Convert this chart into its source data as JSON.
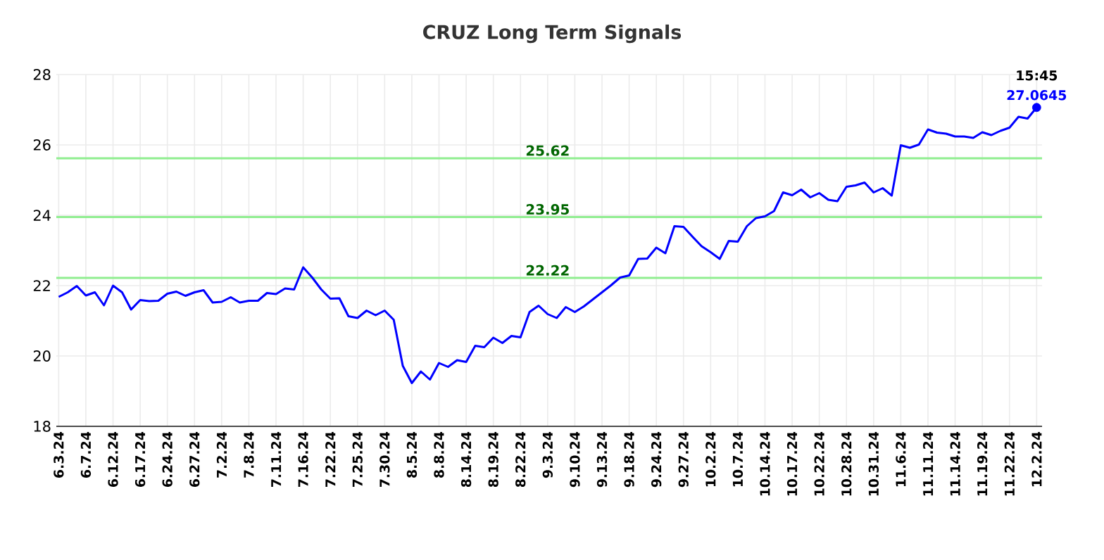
{
  "chart_data": {
    "type": "line",
    "title": "CRUZ Long Term Signals",
    "categories": [
      "6.3.24",
      null,
      null,
      "6.7.24",
      null,
      null,
      "6.12.24",
      null,
      null,
      "6.17.24",
      null,
      null,
      "6.24.24",
      null,
      null,
      "6.27.24",
      null,
      null,
      "7.2.24",
      null,
      null,
      "7.8.24",
      null,
      null,
      "7.11.24",
      null,
      null,
      "7.16.24",
      null,
      null,
      "7.22.24",
      null,
      null,
      "7.25.24",
      null,
      null,
      "7.30.24",
      null,
      null,
      "8.5.24",
      null,
      null,
      "8.8.24",
      null,
      null,
      "8.14.24",
      null,
      null,
      "8.19.24",
      null,
      null,
      "8.22.24",
      null,
      null,
      "9.3.24",
      null,
      null,
      "9.10.24",
      null,
      null,
      "9.13.24",
      null,
      null,
      "9.18.24",
      null,
      null,
      "9.24.24",
      null,
      null,
      "9.27.24",
      null,
      null,
      "10.2.24",
      null,
      null,
      "10.7.24",
      null,
      null,
      "10.14.24",
      null,
      null,
      "10.17.24",
      null,
      null,
      "10.22.24",
      null,
      null,
      "10.28.24",
      null,
      null,
      "10.31.24",
      null,
      null,
      "11.6.24",
      null,
      null,
      "11.11.24",
      null,
      null,
      "11.14.24",
      null,
      null,
      "11.19.24",
      null,
      null,
      "11.22.24",
      null,
      null,
      "12.2.24"
    ],
    "series": [
      {
        "color": "#0000ff",
        "values": [
          21.68,
          21.81,
          21.99,
          21.72,
          21.81,
          21.44,
          22.0,
          21.81,
          21.32,
          21.59,
          21.56,
          21.57,
          21.77,
          21.83,
          21.71,
          21.81,
          21.87,
          21.52,
          21.54,
          21.67,
          21.52,
          21.57,
          21.57,
          21.79,
          21.76,
          21.92,
          21.89,
          22.52,
          22.23,
          21.89,
          21.63,
          21.64,
          21.13,
          21.08,
          21.29,
          21.16,
          21.29,
          21.03,
          19.72,
          19.23,
          19.56,
          19.33,
          19.8,
          19.69,
          19.88,
          19.83,
          20.29,
          20.25,
          20.52,
          20.37,
          20.57,
          20.53,
          21.25,
          21.43,
          21.19,
          21.08,
          21.39,
          21.25,
          21.41,
          21.61,
          21.81,
          22.01,
          22.23,
          22.29,
          22.76,
          22.77,
          23.08,
          22.92,
          23.69,
          23.67,
          23.39,
          23.12,
          22.95,
          22.76,
          23.27,
          23.25,
          23.69,
          23.92,
          23.97,
          24.12,
          24.65,
          24.57,
          24.73,
          24.51,
          24.63,
          24.44,
          24.4,
          24.81,
          24.85,
          24.93,
          24.65,
          24.77,
          24.56,
          25.99,
          25.92,
          26.01,
          26.44,
          26.35,
          26.32,
          26.24,
          26.24,
          26.2,
          26.36,
          26.28,
          26.4,
          26.49,
          26.8,
          26.75,
          27.0645
        ]
      },
      {
        "type": "scatter",
        "x": [
          "12.2.24"
        ],
        "color": "#0000ff",
        "values": [
          27.0645
        ]
      }
    ],
    "ylim": [
      18,
      28
    ],
    "yticks": [
      18,
      20,
      22,
      24,
      26,
      28
    ],
    "grid": true,
    "ref_lines": [
      {
        "axis": "y",
        "value": 25.62,
        "label": "25.62",
        "color": "#90ee90"
      },
      {
        "axis": "y",
        "value": 23.95,
        "label": "23.95",
        "color": "#90ee90"
      },
      {
        "axis": "y",
        "value": 22.22,
        "label": "22.22",
        "color": "#90ee90"
      }
    ],
    "annotations": [
      {
        "text": "15:45",
        "x": "12.2.24",
        "y": 27.0645
      },
      {
        "text": "27.0645",
        "x": "12.2.24",
        "y": 27.0645
      }
    ]
  }
}
